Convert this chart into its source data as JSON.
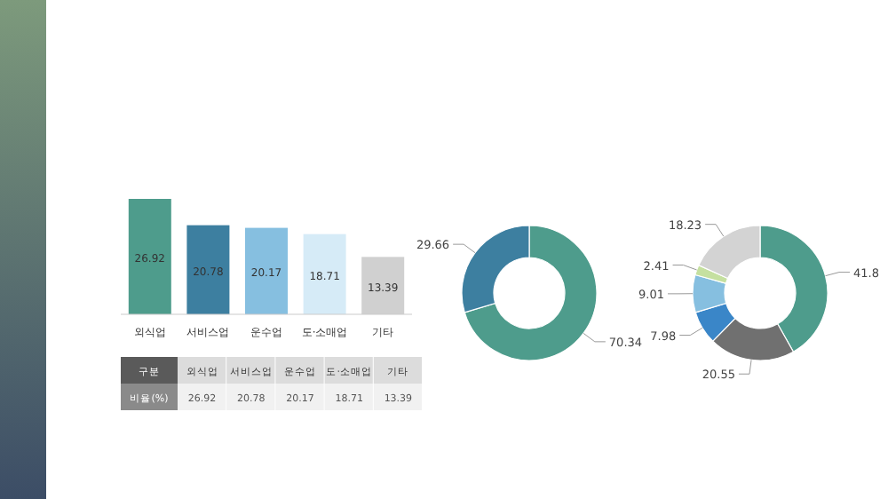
{
  "chart_data": [
    {
      "type": "bar",
      "categories": [
        "외식업",
        "서비스업",
        "운수업",
        "도·소매업",
        "기타"
      ],
      "values": [
        26.92,
        20.78,
        20.17,
        18.71,
        13.39
      ],
      "colors": [
        "#4e9c8c",
        "#3d7fa0",
        "#86bfe0",
        "#d6ebf7",
        "#d0d0d0"
      ],
      "data_labels": true
    },
    {
      "type": "other",
      "categories": [
        "외식업",
        "서비스업",
        "운수업",
        "도·소매업",
        "기타"
      ],
      "values": [
        26.92,
        20.78,
        20.17,
        18.71,
        13.39
      ],
      "data_labels": true,
      "annotations": [
        "구분",
        "비율(%)"
      ]
    },
    {
      "type": "donut",
      "categories": [
        null,
        null
      ],
      "values": [
        70.34,
        29.66
      ],
      "colors": [
        "#4e9c8c",
        "#3d7fa0"
      ],
      "data_labels": true
    },
    {
      "type": "donut",
      "categories": [
        null,
        null,
        null,
        null,
        null,
        null
      ],
      "values": [
        41.8,
        20.55,
        7.98,
        9.01,
        2.41,
        18.23
      ],
      "colors": [
        "#4e9c8c",
        "#707070",
        "#3a86c8",
        "#86bfe0",
        "#c5e0a0",
        "#d3d3d3"
      ],
      "data_labels": true
    }
  ]
}
